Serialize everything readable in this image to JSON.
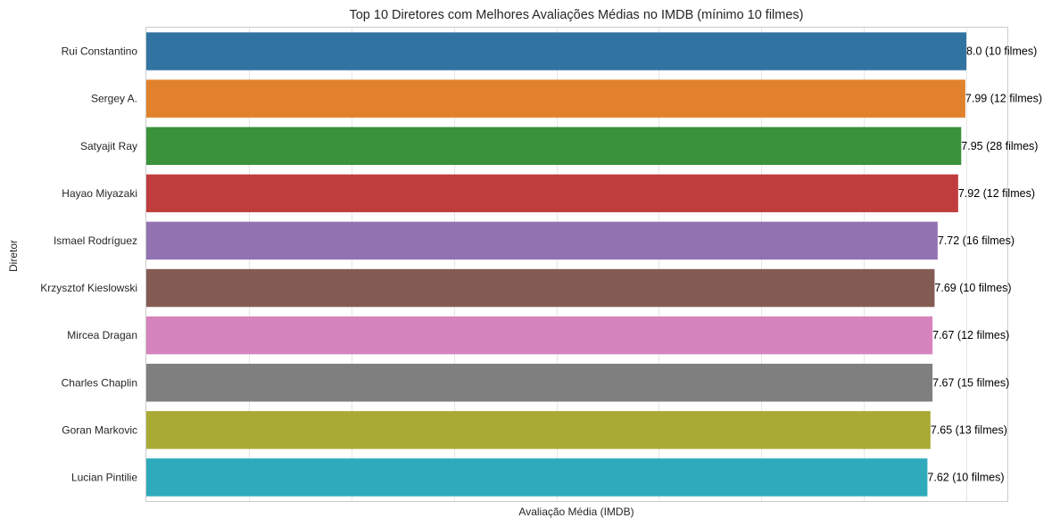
{
  "chart_data": {
    "type": "bar",
    "orientation": "horizontal",
    "title": "Top 10 Diretores com Melhores Avaliações Médias no IMDB (mínimo 10 filmes)",
    "xlabel": "Avaliação Média (IMDB)",
    "ylabel": "Diretor",
    "xlim": [
      0,
      8.4
    ],
    "grid": true,
    "x_tick_labels_visible": false,
    "categories": [
      "Rui Constantino",
      "Sergey A.",
      "Satyajit Ray",
      "Hayao Miyazaki",
      "Ismael Rodríguez",
      "Krzysztof Kieslowski",
      "Mircea Dragan",
      "Charles Chaplin",
      "Goran Markovic",
      "Lucian Pintilie"
    ],
    "values": [
      8.0,
      7.99,
      7.95,
      7.92,
      7.72,
      7.69,
      7.67,
      7.67,
      7.65,
      7.62
    ],
    "data_labels": [
      "8.0 (10 filmes)",
      "7.99 (12 filmes)",
      "7.95 (28 filmes)",
      "7.92 (12 filmes)",
      "7.72 (16 filmes)",
      "7.69 (10 filmes)",
      "7.67 (12 filmes)",
      "7.67 (15 filmes)",
      "7.65 (13 filmes)",
      "7.62 (10 filmes)"
    ],
    "colors": [
      "#3274a1",
      "#e1812c",
      "#3a923a",
      "#c03d3e",
      "#9372b2",
      "#845b53",
      "#d684bd",
      "#7f7f7f",
      "#a9aa35",
      "#2eaabc"
    ]
  }
}
